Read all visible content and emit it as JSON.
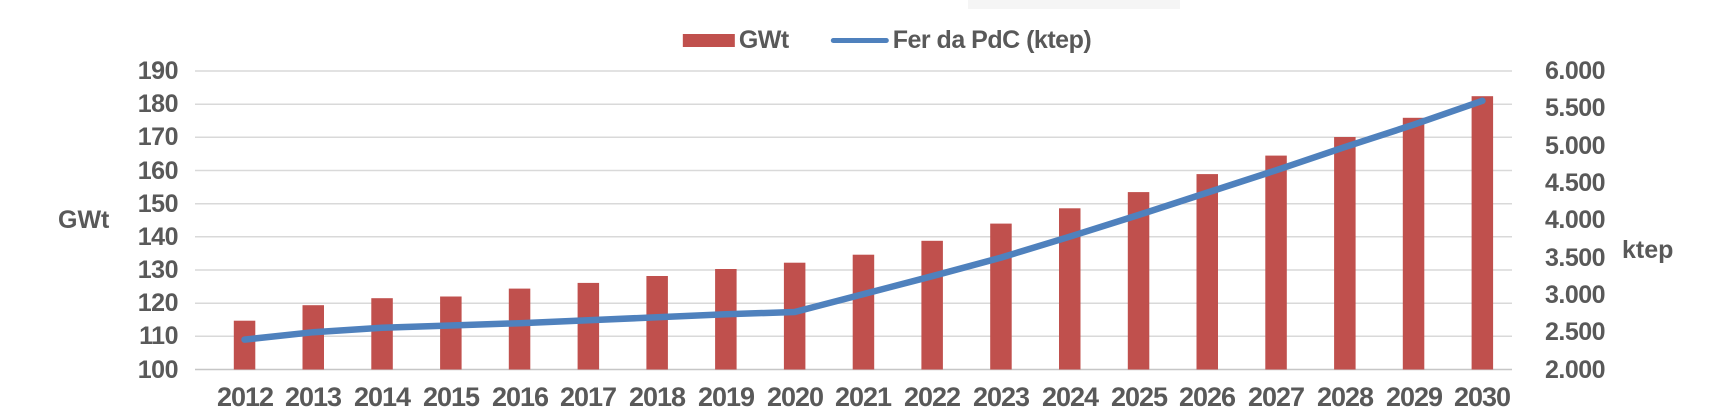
{
  "colors": {
    "bar": "#C0504D",
    "line": "#4F81BD",
    "text": "#595959",
    "gridline": "#D9D9D9",
    "axis_line": "#C6C6C6",
    "background": "#FFFFFF",
    "top_artifact": "#F5F5F5"
  },
  "legend": {
    "position": "top-center",
    "items": [
      {
        "label": "GWt",
        "swatch": "bar"
      },
      {
        "label": "Fer da PdC (ktep)",
        "swatch": "line"
      }
    ]
  },
  "chart_data": {
    "type": "bar",
    "subtype": "bar-line-combo",
    "title": "",
    "categories": [
      "2012",
      "2013",
      "2014",
      "2015",
      "2016",
      "2017",
      "2018",
      "2019",
      "2020",
      "2021",
      "2022",
      "2023",
      "2024",
      "2025",
      "2026",
      "2027",
      "2028",
      "2029",
      "2030"
    ],
    "series": [
      {
        "name": "GWt",
        "type": "bar",
        "axis": "left",
        "values": [
          114.7,
          119.4,
          121.5,
          122.0,
          124.4,
          126.1,
          128.2,
          130.3,
          132.2,
          134.6,
          138.8,
          144.0,
          148.6,
          153.5,
          158.9,
          164.5,
          170.1,
          175.9,
          182.4
        ]
      },
      {
        "name": "Fer da PdC (ktep)",
        "type": "line",
        "axis": "right",
        "values": [
          2400,
          2500,
          2560,
          2590,
          2620,
          2660,
          2700,
          2740,
          2770,
          3010,
          3250,
          3500,
          3780,
          4070,
          4370,
          4670,
          4980,
          5280,
          5600
        ]
      }
    ],
    "left_axis": {
      "title": "GWt",
      "min": 100,
      "max": 190,
      "step": 10,
      "tick_labels": [
        "190",
        "180",
        "170",
        "160",
        "150",
        "140",
        "130",
        "120",
        "110",
        "100"
      ]
    },
    "right_axis": {
      "title": "ktep",
      "min": 2000,
      "max": 6000,
      "step": 500,
      "tick_labels": [
        "6.000",
        "5.500",
        "5.000",
        "4.500",
        "4.000",
        "3.500",
        "3.000",
        "2.500",
        "2.000"
      ]
    },
    "grid": true,
    "legend_position": "top-center"
  }
}
